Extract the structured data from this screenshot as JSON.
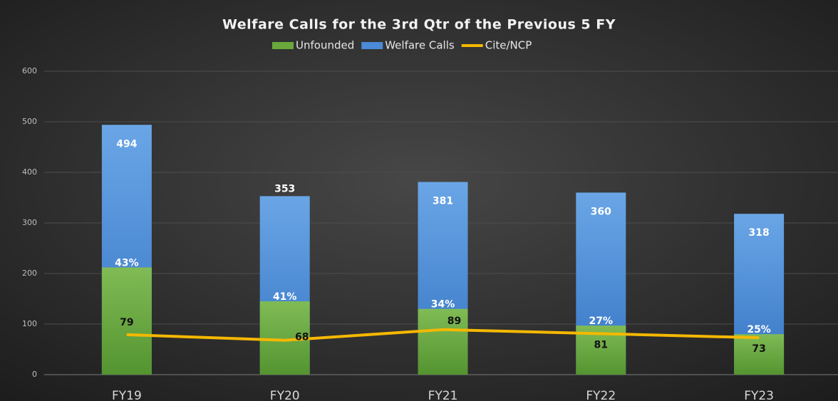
{
  "chart_data": {
    "type": "bar_line",
    "title": "Welfare Calls for the 3rd Qtr of the Previous 5 FY",
    "categories": [
      "FY19",
      "FY20",
      "FY21",
      "FY22",
      "FY23"
    ],
    "series": [
      {
        "name": "Welfare Calls",
        "color": "#4a8ad6",
        "kind": "bar",
        "values": [
          494,
          353,
          381,
          360,
          318
        ]
      },
      {
        "name": "Unfounded",
        "color": "#6aa83c",
        "kind": "bar",
        "values": [
          212,
          145,
          130,
          97,
          80
        ],
        "share_labels": [
          "43%",
          "41%",
          "34%",
          "27%",
          "25%"
        ]
      },
      {
        "name": "Cite/NCP",
        "color": "#f5b800",
        "kind": "line",
        "values": [
          79,
          68,
          89,
          81,
          73
        ]
      }
    ],
    "legend_order": [
      1,
      0,
      2
    ],
    "ylim": [
      0,
      600
    ],
    "yticks": [
      0,
      100,
      200,
      300,
      400,
      500,
      600
    ],
    "grid": true
  }
}
